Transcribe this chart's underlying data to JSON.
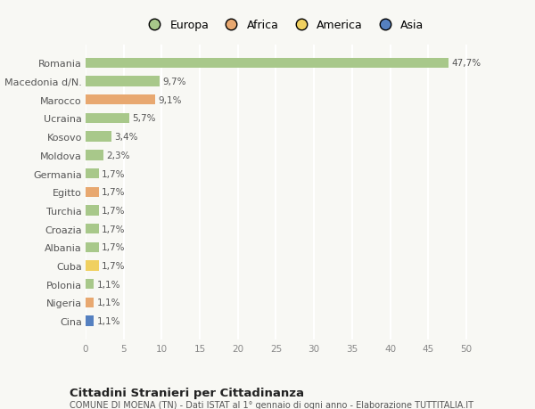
{
  "countries": [
    "Romania",
    "Macedonia d/N.",
    "Marocco",
    "Ucraina",
    "Kosovo",
    "Moldova",
    "Germania",
    "Egitto",
    "Turchia",
    "Croazia",
    "Albania",
    "Cuba",
    "Polonia",
    "Nigeria",
    "Cina"
  ],
  "values": [
    47.7,
    9.7,
    9.1,
    5.7,
    3.4,
    2.3,
    1.7,
    1.7,
    1.7,
    1.7,
    1.7,
    1.7,
    1.1,
    1.1,
    1.1
  ],
  "labels": [
    "47,7%",
    "9,7%",
    "9,1%",
    "5,7%",
    "3,4%",
    "2,3%",
    "1,7%",
    "1,7%",
    "1,7%",
    "1,7%",
    "1,7%",
    "1,7%",
    "1,1%",
    "1,1%",
    "1,1%"
  ],
  "continents": [
    "Europa",
    "Europa",
    "Africa",
    "Europa",
    "Europa",
    "Europa",
    "Europa",
    "Africa",
    "Europa",
    "Europa",
    "Europa",
    "America",
    "Europa",
    "Africa",
    "Asia"
  ],
  "continent_colors": {
    "Europa": "#a8c88a",
    "Africa": "#e8a870",
    "America": "#f0d060",
    "Asia": "#5580c0"
  },
  "legend_order": [
    "Europa",
    "Africa",
    "America",
    "Asia"
  ],
  "legend_colors": [
    "#a8c88a",
    "#e8a870",
    "#f0d060",
    "#5580c0"
  ],
  "xlim": [
    0,
    52
  ],
  "xticks": [
    0,
    5,
    10,
    15,
    20,
    25,
    30,
    35,
    40,
    45,
    50
  ],
  "title": "Cittadini Stranieri per Cittadinanza",
  "subtitle": "COMUNE DI MOENA (TN) - Dati ISTAT al 1° gennaio di ogni anno - Elaborazione TUTTITALIA.IT",
  "background_color": "#f8f8f4",
  "grid_color": "#ffffff",
  "bar_height": 0.55
}
